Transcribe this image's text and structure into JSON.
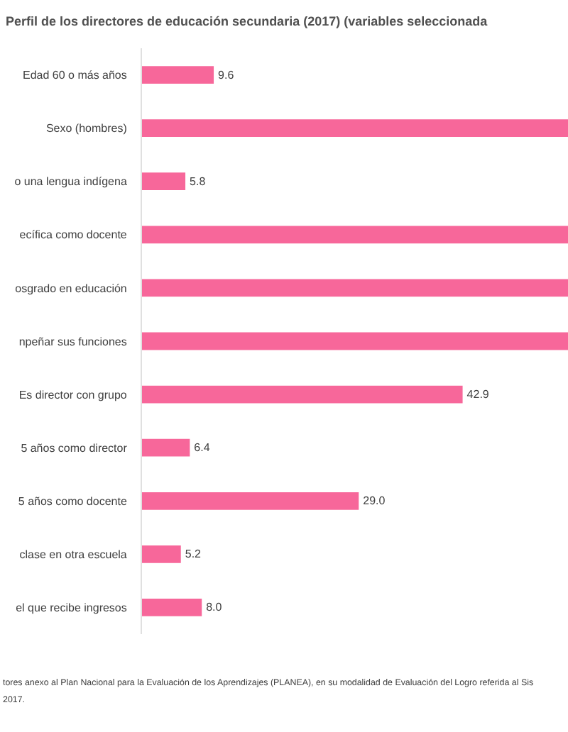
{
  "chart_data": {
    "type": "bar",
    "orientation": "horizontal",
    "title": "Perfil de los directores de educación secundaria (2017) (variables seleccionada",
    "categories": [
      "Edad 60 o más años",
      "Sexo (hombres)",
      "o una lengua indígena",
      "ecífica como docente",
      "osgrado en educación",
      "npeñar sus funciones",
      "Es director con grupo",
      "5 años como director",
      "5 años como docente",
      "clase en otra escuela",
      "el que recibe ingresos"
    ],
    "values": [
      9.6,
      57,
      5.8,
      57,
      57,
      57,
      42.9,
      6.4,
      29.0,
      5.2,
      8.0
    ],
    "value_labels": [
      "9.6",
      null,
      "5.8",
      null,
      null,
      null,
      "42.9",
      "6.4",
      "29.0",
      "5.2",
      "8.0"
    ],
    "color": "#f7679a",
    "xlim": [
      0,
      57
    ],
    "tick_labels": "y",
    "grid": false,
    "legend": false,
    "annotations": [
      "tores anexo al Plan Nacional para la Evaluación de los Aprendizajes (PLANEA), en su modalidad de Evaluación del Logro referida al Sis",
      "2017."
    ]
  }
}
